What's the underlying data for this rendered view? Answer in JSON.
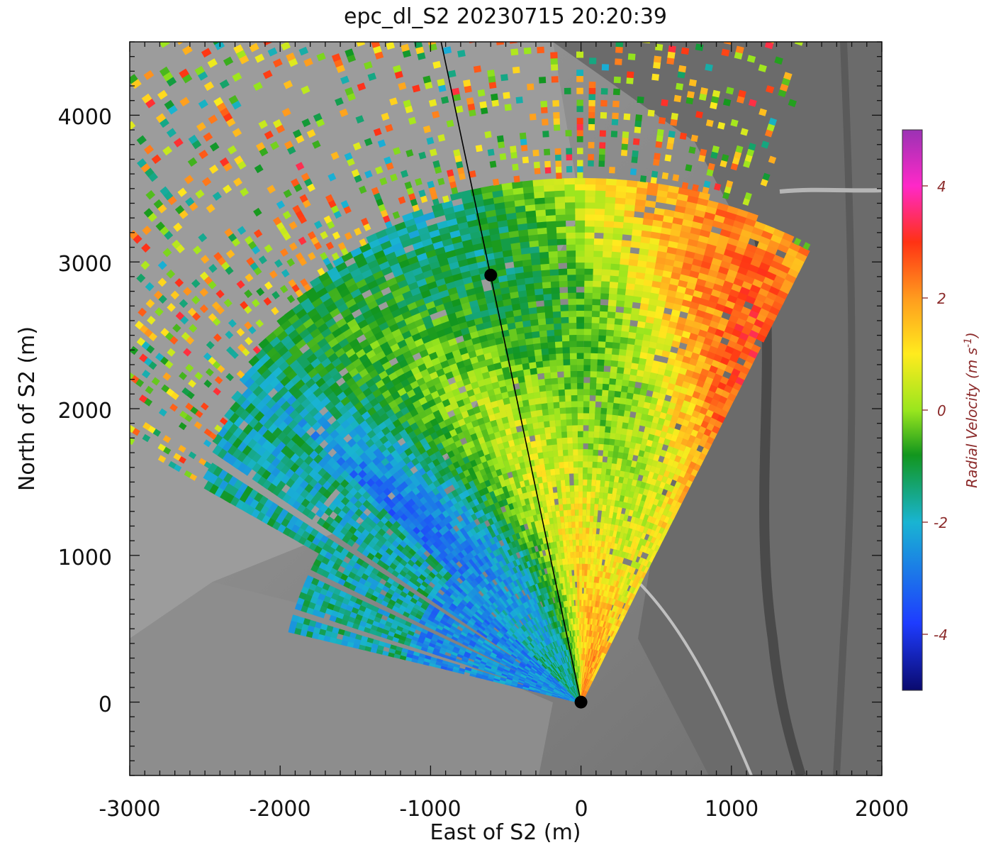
{
  "chart_data": {
    "type": "heatmap",
    "title": "epc_dl_S2  20230715 20:20:39",
    "xlabel": "East of S2 (m)",
    "ylabel": "North of S2 (m)",
    "xlim": [
      -3000,
      2000
    ],
    "ylim": [
      -500,
      4500
    ],
    "x_ticks": [
      "-3000",
      "-2000",
      "-1000",
      "0",
      "1000",
      "2000"
    ],
    "y_ticks": [
      "0",
      "1000",
      "2000",
      "3000",
      "4000"
    ],
    "colorbar": {
      "label": "Radial Velocity (m s",
      "label_exp": "-1",
      "label_close": ")",
      "range": [
        -5,
        5
      ],
      "ticks": [
        "4",
        "2",
        "0",
        "-2",
        "-4"
      ]
    },
    "scan_line": {
      "start": [
        -930,
        4500
      ],
      "end": [
        0,
        0
      ]
    },
    "markers": [
      {
        "name": "S2",
        "x": 0,
        "y": 0
      },
      {
        "name": "point",
        "x": -600,
        "y": 2910
      }
    ],
    "colors": {
      "background_terrain": "#7a7a7a",
      "water": "#9a9a9a",
      "axis": "#111111",
      "colorbar_label": "#8b2a2a"
    }
  }
}
